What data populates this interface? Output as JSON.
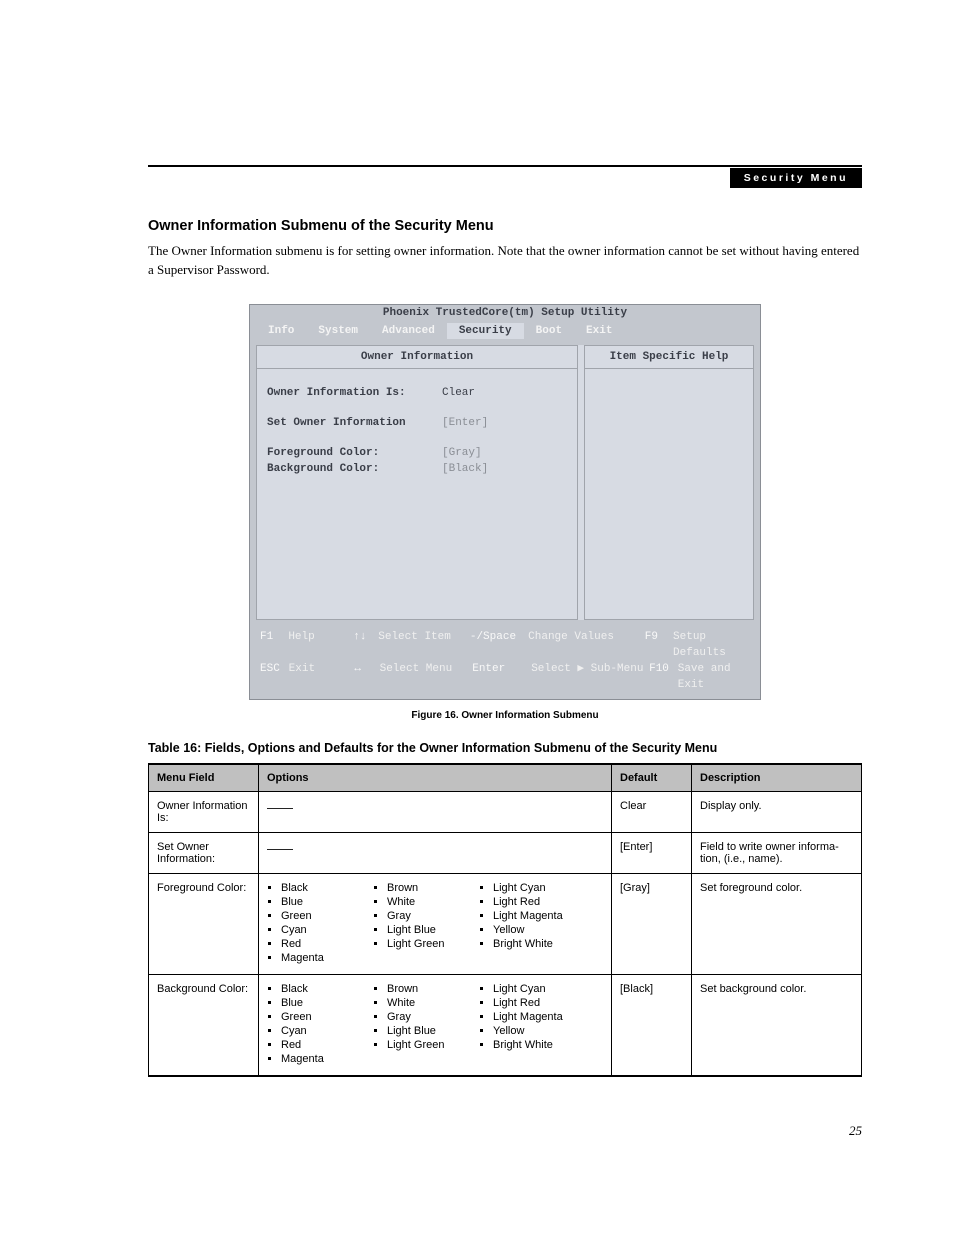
{
  "breadcrumb": "Security Menu",
  "page_number": "25",
  "section_title": "Owner Information Submenu of the Security Menu",
  "intro_text": "The Owner Information submenu is for setting owner information. Note that the owner information cannot be set without having entered a Supervisor Password.",
  "bios": {
    "title": "Phoenix TrustedCore(tm) Setup Utility",
    "tabs": [
      "Info",
      "System",
      "Advanced",
      "Security",
      "Boot",
      "Exit"
    ],
    "active_tab": "Security",
    "left_header": "Owner Information",
    "right_header": "Item Specific Help",
    "rows": [
      {
        "label": "Owner Information Is:",
        "value": "Clear",
        "dim": false
      },
      {
        "label": "Set Owner Information",
        "value": "[Enter]",
        "dim": true
      },
      {
        "label": "Foreground Color:",
        "value": "[Gray]",
        "dim": true
      },
      {
        "label": "Background Color:",
        "value": "[Black]",
        "dim": true
      }
    ],
    "footer": {
      "r1": {
        "k1": "F1",
        "l1": "Help",
        "k2": "↑↓",
        "l2": "Select Item",
        "k3": "-/Space",
        "l3": "Change Values",
        "k4": "F9",
        "l4": "Setup Defaults"
      },
      "r2": {
        "k1": "ESC",
        "l1": "Exit",
        "k2": "↔",
        "l2": "Select Menu",
        "k3": "Enter",
        "l3": "Select ▶ Sub-Menu",
        "k4": "F10",
        "l4": "Save and Exit"
      }
    },
    "colors": {
      "outer_bg": "#c3c7ce",
      "inner_bg": "#d7dbe3",
      "text_dark": "#3a3e48",
      "text_dim": "#8a8e95",
      "footer_text": "#f0f0f0"
    }
  },
  "figure_caption": "Figure 16.   Owner Information Submenu",
  "table_caption": "Table 16: Fields, Options and Defaults for the Owner Information Submenu of the Security Menu",
  "table": {
    "headers": [
      "Menu Field",
      "Options",
      "Default",
      "Description"
    ],
    "column_widths": [
      "110px",
      "auto",
      "80px",
      "170px"
    ],
    "color_options": {
      "col1": [
        "Black",
        "Blue",
        "Green",
        "Cyan",
        "Red",
        "Magenta"
      ],
      "col2": [
        "Brown",
        "White",
        "Gray",
        "Light Blue",
        "Light Green"
      ],
      "col3": [
        "Light Cyan",
        "Light Red",
        "Light Magenta",
        "Yellow",
        "Bright White"
      ]
    },
    "rows": [
      {
        "field": "Owner Information Is:",
        "options_type": "dash",
        "default": "Clear",
        "description": "Display only."
      },
      {
        "field": "Set Owner Informa­tion:",
        "options_type": "dash",
        "default": "[Enter]",
        "description": "Field to write owner informa­tion, (i.e., name)."
      },
      {
        "field": "Foreground Color:",
        "options_type": "colors",
        "default": "[Gray]",
        "description": "Set foreground color."
      },
      {
        "field": "Background Color:",
        "options_type": "colors",
        "default": "[Black]",
        "description": "Set background color."
      }
    ]
  }
}
